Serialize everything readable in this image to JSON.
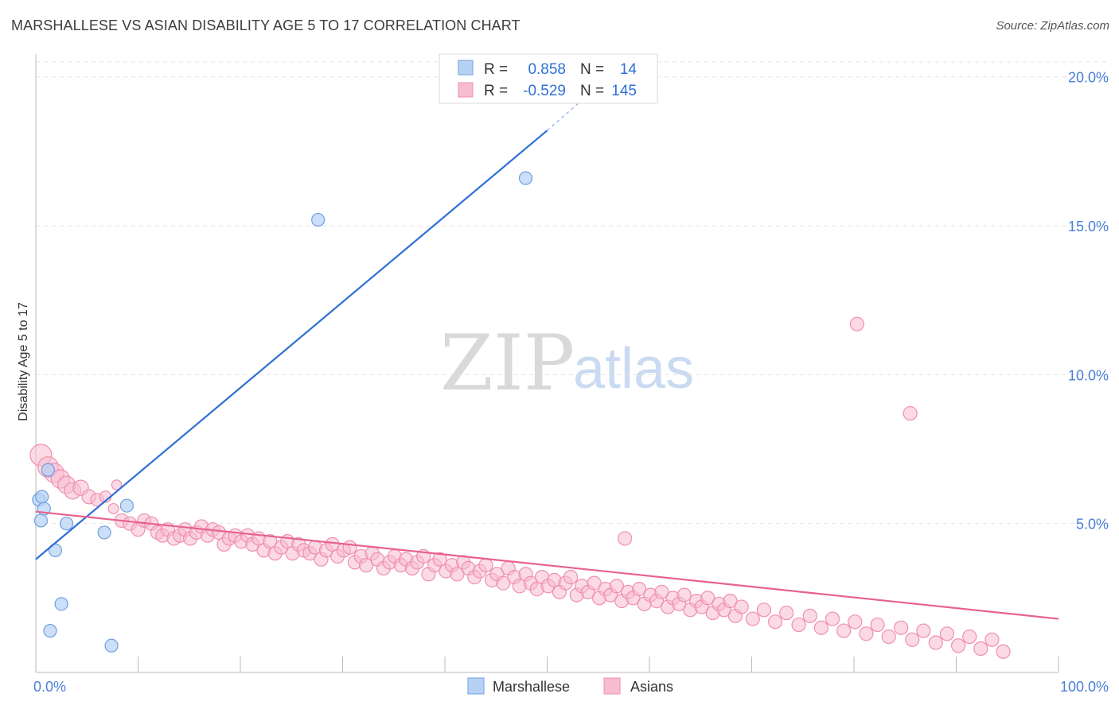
{
  "title": "MARSHALLESE VS ASIAN DISABILITY AGE 5 TO 17 CORRELATION CHART",
  "source": "Source: ZipAtlas.com",
  "watermark": {
    "zip": "ZIP",
    "atlas": "atlas"
  },
  "colors": {
    "marshallese_fill": "#b7d1f5",
    "marshallese_stroke": "#6f9fe0",
    "marshallese_line": "#2f6fd6",
    "asian_fill": "#f7bcd0",
    "asian_stroke": "#ef8fb0",
    "asian_line": "#e8628e",
    "tick": "#4a7fd6",
    "grid": "#e3e3e3"
  },
  "legend": {
    "rows": [
      {
        "r_label": "R =",
        "r_value": "0.858",
        "n_label": "N =",
        "n_value": "14"
      },
      {
        "r_label": "R =",
        "r_value": "-0.529",
        "n_label": "N =",
        "n_value": "145"
      }
    ]
  },
  "bottom_legend": [
    "Marshallese",
    "Asians"
  ],
  "chart_data": {
    "type": "scatter",
    "title": "MARSHALLESE VS ASIAN DISABILITY AGE 5 TO 17 CORRELATION CHART",
    "xlabel": "",
    "ylabel": "Disability Age 5 to 17",
    "xlim": [
      0,
      100
    ],
    "ylim": [
      0,
      20.5
    ],
    "x_tick_labels": [
      "0.0%",
      "100.0%"
    ],
    "y_ticks": [
      5,
      10,
      15,
      20
    ],
    "y_tick_labels": [
      "5.0%",
      "10.0%",
      "15.0%",
      "20.0%"
    ],
    "grid": true,
    "legend_position": "top-center",
    "series": [
      {
        "name": "Marshallese",
        "r": 0.858,
        "n": 14,
        "trend": {
          "x": [
            0,
            50
          ],
          "y": [
            3.8,
            18.2
          ],
          "dashed_to": [
            53,
            19.1
          ]
        },
        "points": [
          [
            0.3,
            5.8
          ],
          [
            0.6,
            5.9
          ],
          [
            0.5,
            5.1
          ],
          [
            0.8,
            5.5
          ],
          [
            1.2,
            6.8
          ],
          [
            1.9,
            4.1
          ],
          [
            2.5,
            2.3
          ],
          [
            3.0,
            5.0
          ],
          [
            1.4,
            1.4
          ],
          [
            6.7,
            4.7
          ],
          [
            7.4,
            0.9
          ],
          [
            8.9,
            5.6
          ],
          [
            27.6,
            15.2
          ],
          [
            47.9,
            16.6
          ]
        ]
      },
      {
        "name": "Asians",
        "r": -0.529,
        "n": 145,
        "trend": {
          "x": [
            0,
            100
          ],
          "y": [
            5.4,
            1.8
          ]
        },
        "points": [
          [
            0.5,
            7.3
          ],
          [
            1.2,
            6.9
          ],
          [
            1.8,
            6.7
          ],
          [
            2.4,
            6.5
          ],
          [
            3.0,
            6.3
          ],
          [
            3.6,
            6.1
          ],
          [
            4.4,
            6.2
          ],
          [
            5.2,
            5.9
          ],
          [
            6.0,
            5.8
          ],
          [
            6.8,
            5.9
          ],
          [
            7.6,
            5.5
          ],
          [
            7.9,
            6.3
          ],
          [
            8.4,
            5.1
          ],
          [
            9.2,
            5.0
          ],
          [
            10.0,
            4.8
          ],
          [
            10.6,
            5.1
          ],
          [
            11.3,
            5.0
          ],
          [
            11.9,
            4.7
          ],
          [
            12.4,
            4.6
          ],
          [
            12.9,
            4.8
          ],
          [
            13.5,
            4.5
          ],
          [
            14.1,
            4.6
          ],
          [
            14.6,
            4.8
          ],
          [
            15.1,
            4.5
          ],
          [
            15.7,
            4.7
          ],
          [
            16.2,
            4.9
          ],
          [
            16.8,
            4.6
          ],
          [
            17.3,
            4.8
          ],
          [
            17.9,
            4.7
          ],
          [
            18.4,
            4.3
          ],
          [
            18.9,
            4.5
          ],
          [
            19.5,
            4.6
          ],
          [
            20.1,
            4.4
          ],
          [
            20.7,
            4.6
          ],
          [
            21.2,
            4.3
          ],
          [
            21.8,
            4.5
          ],
          [
            22.3,
            4.1
          ],
          [
            22.9,
            4.4
          ],
          [
            23.4,
            4.0
          ],
          [
            24.0,
            4.2
          ],
          [
            24.6,
            4.4
          ],
          [
            25.1,
            4.0
          ],
          [
            25.7,
            4.3
          ],
          [
            26.2,
            4.1
          ],
          [
            26.8,
            4.0
          ],
          [
            27.3,
            4.2
          ],
          [
            27.9,
            3.8
          ],
          [
            28.4,
            4.1
          ],
          [
            29.0,
            4.3
          ],
          [
            29.5,
            3.9
          ],
          [
            30.1,
            4.1
          ],
          [
            30.7,
            4.2
          ],
          [
            31.2,
            3.7
          ],
          [
            31.8,
            3.9
          ],
          [
            32.3,
            3.6
          ],
          [
            32.9,
            4.0
          ],
          [
            33.4,
            3.8
          ],
          [
            34.0,
            3.5
          ],
          [
            34.6,
            3.7
          ],
          [
            35.1,
            3.9
          ],
          [
            35.7,
            3.6
          ],
          [
            36.2,
            3.8
          ],
          [
            36.8,
            3.5
          ],
          [
            37.3,
            3.7
          ],
          [
            37.9,
            3.9
          ],
          [
            38.4,
            3.3
          ],
          [
            39.0,
            3.6
          ],
          [
            39.5,
            3.8
          ],
          [
            40.1,
            3.4
          ],
          [
            40.7,
            3.6
          ],
          [
            41.2,
            3.3
          ],
          [
            41.8,
            3.7
          ],
          [
            42.3,
            3.5
          ],
          [
            42.9,
            3.2
          ],
          [
            43.4,
            3.4
          ],
          [
            44.0,
            3.6
          ],
          [
            44.6,
            3.1
          ],
          [
            45.1,
            3.3
          ],
          [
            45.7,
            3.0
          ],
          [
            46.2,
            3.5
          ],
          [
            46.8,
            3.2
          ],
          [
            47.3,
            2.9
          ],
          [
            47.9,
            3.3
          ],
          [
            48.4,
            3.0
          ],
          [
            49.0,
            2.8
          ],
          [
            49.5,
            3.2
          ],
          [
            50.1,
            2.9
          ],
          [
            50.7,
            3.1
          ],
          [
            51.2,
            2.7
          ],
          [
            51.8,
            3.0
          ],
          [
            52.3,
            3.2
          ],
          [
            52.9,
            2.6
          ],
          [
            53.4,
            2.9
          ],
          [
            54.0,
            2.7
          ],
          [
            54.6,
            3.0
          ],
          [
            55.1,
            2.5
          ],
          [
            55.7,
            2.8
          ],
          [
            56.2,
            2.6
          ],
          [
            56.8,
            2.9
          ],
          [
            57.3,
            2.4
          ],
          [
            57.9,
            2.7
          ],
          [
            58.4,
            2.5
          ],
          [
            59.0,
            2.8
          ],
          [
            59.5,
            2.3
          ],
          [
            60.1,
            2.6
          ],
          [
            60.7,
            2.4
          ],
          [
            61.2,
            2.7
          ],
          [
            61.8,
            2.2
          ],
          [
            62.3,
            2.5
          ],
          [
            62.9,
            2.3
          ],
          [
            63.4,
            2.6
          ],
          [
            64.0,
            2.1
          ],
          [
            64.6,
            2.4
          ],
          [
            65.1,
            2.2
          ],
          [
            65.7,
            2.5
          ],
          [
            66.2,
            2.0
          ],
          [
            66.8,
            2.3
          ],
          [
            67.3,
            2.1
          ],
          [
            67.9,
            2.4
          ],
          [
            68.4,
            1.9
          ],
          [
            69.0,
            2.2
          ],
          [
            70.1,
            1.8
          ],
          [
            71.2,
            2.1
          ],
          [
            72.3,
            1.7
          ],
          [
            73.4,
            2.0
          ],
          [
            74.6,
            1.6
          ],
          [
            75.7,
            1.9
          ],
          [
            76.8,
            1.5
          ],
          [
            77.9,
            1.8
          ],
          [
            79.0,
            1.4
          ],
          [
            80.1,
            1.7
          ],
          [
            81.2,
            1.3
          ],
          [
            82.3,
            1.6
          ],
          [
            83.4,
            1.2
          ],
          [
            84.6,
            1.5
          ],
          [
            85.7,
            1.1
          ],
          [
            86.8,
            1.4
          ],
          [
            88.0,
            1.0
          ],
          [
            89.1,
            1.3
          ],
          [
            90.2,
            0.9
          ],
          [
            91.3,
            1.2
          ],
          [
            92.4,
            0.8
          ],
          [
            93.5,
            1.1
          ],
          [
            94.6,
            0.7
          ],
          [
            80.3,
            11.7
          ],
          [
            85.5,
            8.7
          ],
          [
            57.6,
            4.5
          ]
        ]
      }
    ]
  }
}
